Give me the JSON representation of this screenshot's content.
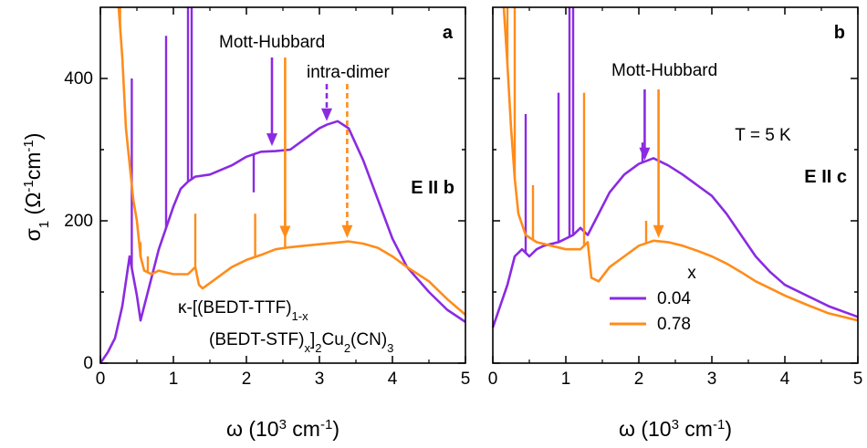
{
  "colors": {
    "x004": "#8a2be2",
    "x078": "#ff8c1a"
  },
  "y_axis_label": {
    "main": "σ",
    "sub": "1",
    "unit_open": " (Ω",
    "exp1": "-1",
    "unit_mid": "cm",
    "exp2": "-1",
    "unit_close": ")"
  },
  "chart_data": [
    {
      "type": "line",
      "panel_label": "a",
      "polarization": "E II b",
      "xlabel": {
        "main": "ω (10",
        "exp": "3",
        "rest": " cm",
        "exp2": "-1",
        "close": ")"
      },
      "xlim": [
        0,
        5
      ],
      "ylim": [
        0,
        500
      ],
      "x_ticks": [
        "0",
        "1",
        "2",
        "3",
        "4",
        "5"
      ],
      "y_ticks": [
        "200",
        "400"
      ],
      "y_tick_values": [
        0,
        200,
        400
      ],
      "y_tick_zero": "0",
      "annotations": {
        "mott_hubbard": "Mott-Hubbard",
        "intra_dimer": "intra-dimer"
      },
      "compound": {
        "line1_a": "κ-[(BEDT-TTF)",
        "line1_sub": "1-x",
        "line2_a": "(BEDT-STF)",
        "line2_sub1": "x",
        "line2_b": "]",
        "line2_sub2": "2",
        "line2_c": "Cu",
        "line2_sub3": "2",
        "line2_d": "(CN)",
        "line2_sub4": "3"
      },
      "series": [
        {
          "x_value": "0.04",
          "points": [
            [
              0,
              0
            ],
            [
              0.1,
              15
            ],
            [
              0.2,
              35
            ],
            [
              0.3,
              80
            ],
            [
              0.4,
              150
            ],
            [
              0.5,
              95
            ],
            [
              0.55,
              60
            ],
            [
              0.6,
              80
            ],
            [
              0.7,
              120
            ],
            [
              0.8,
              160
            ],
            [
              0.9,
              190
            ],
            [
              1.0,
              220
            ],
            [
              1.1,
              245
            ],
            [
              1.2,
              255
            ],
            [
              1.3,
              262
            ],
            [
              1.5,
              265
            ],
            [
              1.8,
              278
            ],
            [
              2.0,
              290
            ],
            [
              2.2,
              297
            ],
            [
              2.4,
              298
            ],
            [
              2.6,
              300
            ],
            [
              2.8,
              315
            ],
            [
              3.0,
              330
            ],
            [
              3.1,
              335
            ],
            [
              3.25,
              340
            ],
            [
              3.4,
              330
            ],
            [
              3.6,
              285
            ],
            [
              3.8,
              230
            ],
            [
              4.0,
              175
            ],
            [
              4.2,
              135
            ],
            [
              4.5,
              100
            ],
            [
              4.75,
              75
            ],
            [
              5.0,
              58
            ]
          ],
          "spikes": [
            [
              0.43,
              400
            ],
            [
              0.9,
              460
            ],
            [
              1.2,
              500
            ],
            [
              1.25,
              500
            ],
            [
              2.1,
              240
            ]
          ]
        },
        {
          "x_value": "0.78",
          "points": [
            [
              0.25,
              500
            ],
            [
              0.3,
              430
            ],
            [
              0.35,
              330
            ],
            [
              0.4,
              280
            ],
            [
              0.45,
              230
            ],
            [
              0.5,
              200
            ],
            [
              0.55,
              150
            ],
            [
              0.6,
              130
            ],
            [
              0.7,
              125
            ],
            [
              0.8,
              130
            ],
            [
              1.0,
              125
            ],
            [
              1.2,
              125
            ],
            [
              1.3,
              135
            ],
            [
              1.35,
              110
            ],
            [
              1.4,
              105
            ],
            [
              1.6,
              120
            ],
            [
              1.8,
              135
            ],
            [
              2.0,
              145
            ],
            [
              2.2,
              152
            ],
            [
              2.4,
              160
            ],
            [
              2.6,
              163
            ],
            [
              2.8,
              165
            ],
            [
              3.0,
              167
            ],
            [
              3.2,
              169
            ],
            [
              3.4,
              171
            ],
            [
              3.6,
              168
            ],
            [
              3.8,
              162
            ],
            [
              4.0,
              150
            ],
            [
              4.2,
              135
            ],
            [
              4.5,
              115
            ],
            [
              4.75,
              90
            ],
            [
              5.0,
              68
            ]
          ],
          "spikes": [
            [
              0.27,
              500
            ],
            [
              0.55,
              170
            ],
            [
              0.65,
              150
            ],
            [
              1.3,
              210
            ],
            [
              2.12,
              210
            ],
            [
              2.53,
              215
            ]
          ]
        }
      ]
    },
    {
      "type": "line",
      "panel_label": "b",
      "polarization": "E II c",
      "temperature": "T = 5 K",
      "xlabel": {
        "main": "ω (10",
        "exp": "3",
        "rest": " cm",
        "exp2": "-1",
        "close": ")"
      },
      "xlim": [
        0,
        5
      ],
      "ylim": [
        0,
        500
      ],
      "x_ticks": [
        "0",
        "1",
        "2",
        "3",
        "4",
        "5"
      ],
      "annotations": {
        "mott_hubbard": "Mott-Hubbard"
      },
      "legend": {
        "title": "x",
        "entries": [
          "0.04",
          "0.78"
        ],
        "position": "bottom-center"
      },
      "series": [
        {
          "x_value": "0.04",
          "points": [
            [
              0,
              50
            ],
            [
              0.1,
              80
            ],
            [
              0.2,
              110
            ],
            [
              0.3,
              150
            ],
            [
              0.4,
              160
            ],
            [
              0.5,
              150
            ],
            [
              0.6,
              160
            ],
            [
              0.7,
              165
            ],
            [
              0.9,
              170
            ],
            [
              1.1,
              180
            ],
            [
              1.2,
              190
            ],
            [
              1.3,
              180
            ],
            [
              1.4,
              200
            ],
            [
              1.6,
              240
            ],
            [
              1.8,
              265
            ],
            [
              2.0,
              280
            ],
            [
              2.2,
              288
            ],
            [
              2.4,
              278
            ],
            [
              2.6,
              265
            ],
            [
              2.8,
              250
            ],
            [
              3.0,
              235
            ],
            [
              3.2,
              210
            ],
            [
              3.4,
              180
            ],
            [
              3.6,
              150
            ],
            [
              3.8,
              128
            ],
            [
              4.0,
              110
            ],
            [
              4.3,
              95
            ],
            [
              4.6,
              80
            ],
            [
              5.0,
              65
            ]
          ],
          "spikes": [
            [
              0.45,
              350
            ],
            [
              0.9,
              380
            ],
            [
              1.05,
              500
            ],
            [
              1.1,
              500
            ],
            [
              2.05,
              310
            ]
          ]
        },
        {
          "x_value": "0.78",
          "points": [
            [
              0.15,
              500
            ],
            [
              0.2,
              420
            ],
            [
              0.25,
              330
            ],
            [
              0.3,
              260
            ],
            [
              0.35,
              210
            ],
            [
              0.45,
              180
            ],
            [
              0.6,
              170
            ],
            [
              0.8,
              165
            ],
            [
              1.0,
              160
            ],
            [
              1.2,
              160
            ],
            [
              1.3,
              170
            ],
            [
              1.35,
              120
            ],
            [
              1.45,
              115
            ],
            [
              1.6,
              135
            ],
            [
              1.8,
              150
            ],
            [
              2.0,
              165
            ],
            [
              2.2,
              172
            ],
            [
              2.4,
              170
            ],
            [
              2.6,
              165
            ],
            [
              2.8,
              158
            ],
            [
              3.0,
              150
            ],
            [
              3.2,
              140
            ],
            [
              3.4,
              128
            ],
            [
              3.6,
              115
            ],
            [
              3.8,
              105
            ],
            [
              4.0,
              95
            ],
            [
              4.3,
              82
            ],
            [
              4.6,
              70
            ],
            [
              5.0,
              60
            ]
          ],
          "spikes": [
            [
              0.2,
              500
            ],
            [
              0.3,
              500
            ],
            [
              0.55,
              250
            ],
            [
              1.25,
              380
            ],
            [
              2.1,
              200
            ]
          ]
        }
      ]
    }
  ]
}
